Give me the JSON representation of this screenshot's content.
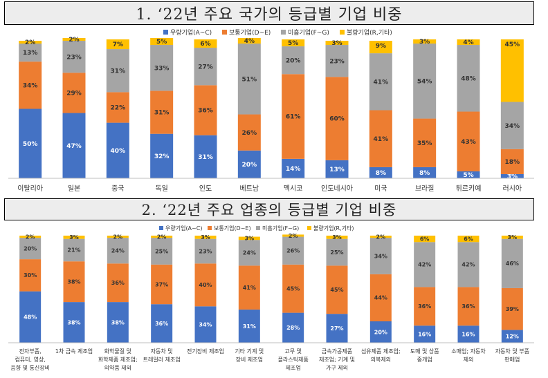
{
  "sections": [
    {
      "title": "1. ‘22년 주요 국가의 등급별 기업 비중",
      "chart_data": {
        "type": "bar",
        "stacked": true,
        "normalized": true,
        "legend_position": "top",
        "categories": [
          "이탈리아",
          "일본",
          "중국",
          "독일",
          "인도",
          "베트남",
          "멕시코",
          "인도네시아",
          "미국",
          "브라질",
          "튀르키예",
          "러시아"
        ],
        "series": [
          {
            "name": "우량기업(A~C)",
            "color": "#4472c4",
            "values": [
              50,
              47,
              40,
              32,
              31,
              20,
              14,
              13,
              8,
              8,
              5,
              3
            ]
          },
          {
            "name": "보통기업(D~E)",
            "color": "#ed7d31",
            "values": [
              34,
              29,
              22,
              31,
              36,
              26,
              61,
              60,
              41,
              35,
              43,
              18
            ]
          },
          {
            "name": "미흡기업(F~G)",
            "color": "#a5a5a5",
            "values": [
              13,
              23,
              31,
              33,
              27,
              51,
              20,
              23,
              41,
              54,
              48,
              34
            ]
          },
          {
            "name": "불량기업(R,기타)",
            "color": "#ffc000",
            "values": [
              2,
              2,
              7,
              5,
              6,
              4,
              5,
              3,
              9,
              3,
              4,
              45
            ]
          }
        ]
      }
    },
    {
      "title": "2. ‘22년 주요 업종의 등급별 기업 비중",
      "chart_data": {
        "type": "bar",
        "stacked": true,
        "normalized": true,
        "legend_position": "top",
        "categories": [
          "전자부품, 컴퓨터, 영상, 음향 및 통신장비",
          "1차 금속 제조업",
          "화학물질 및 화학제품 제조업; 의약품 제외",
          "자동차 및 트레일러 제조업",
          "전기장비 제조업",
          "기타 기계 및 장비 제조업",
          "고무 및 플라스틱제품 제조업",
          "금속가공제품 제조업; 기계 및 가구 제외",
          "섬유제품 제조업; 의복제외",
          "도매 및 상품 중개업",
          "소매업; 자동차 제외",
          "자동차 및 부품 판매업"
        ],
        "category_lines": [
          [
            "전자부품,",
            "컴퓨터, 영상,",
            "음향 및 통신장비"
          ],
          [
            "1차 금속 제조업"
          ],
          [
            "화학물질 및",
            "화학제품 제조업;",
            "의약품 제외"
          ],
          [
            "자동차 및",
            "트레일러 제조업"
          ],
          [
            "전기장비 제조업"
          ],
          [
            "기타 기계 및",
            "장비 제조업"
          ],
          [
            "고무 및",
            "플라스틱제품",
            "제조업"
          ],
          [
            "금속가공제품",
            "제조업; 기계 및",
            "가구 제외"
          ],
          [
            "섬유제품 제조업;",
            "의복제외"
          ],
          [
            "도매 및 상품",
            "중개업"
          ],
          [
            "소매업; 자동차",
            "제외"
          ],
          [
            "자동차 및 부품",
            "판매업"
          ]
        ],
        "series": [
          {
            "name": "우량기업(A~C)",
            "color": "#4472c4",
            "values": [
              48,
              38,
              38,
              36,
              34,
              31,
              28,
              27,
              20,
              16,
              16,
              12
            ]
          },
          {
            "name": "보통기업(D~E)",
            "color": "#ed7d31",
            "values": [
              30,
              38,
              36,
              37,
              40,
              41,
              45,
              45,
              44,
              36,
              36,
              39
            ]
          },
          {
            "name": "미흡기업(F~G)",
            "color": "#a5a5a5",
            "values": [
              20,
              21,
              24,
              25,
              23,
              24,
              26,
              25,
              34,
              42,
              42,
              46
            ]
          },
          {
            "name": "불량기업(R,기타)",
            "color": "#ffc000",
            "values": [
              2,
              3,
              2,
              2,
              3,
              3,
              2,
              3,
              2,
              6,
              6,
              3
            ]
          }
        ]
      }
    }
  ]
}
